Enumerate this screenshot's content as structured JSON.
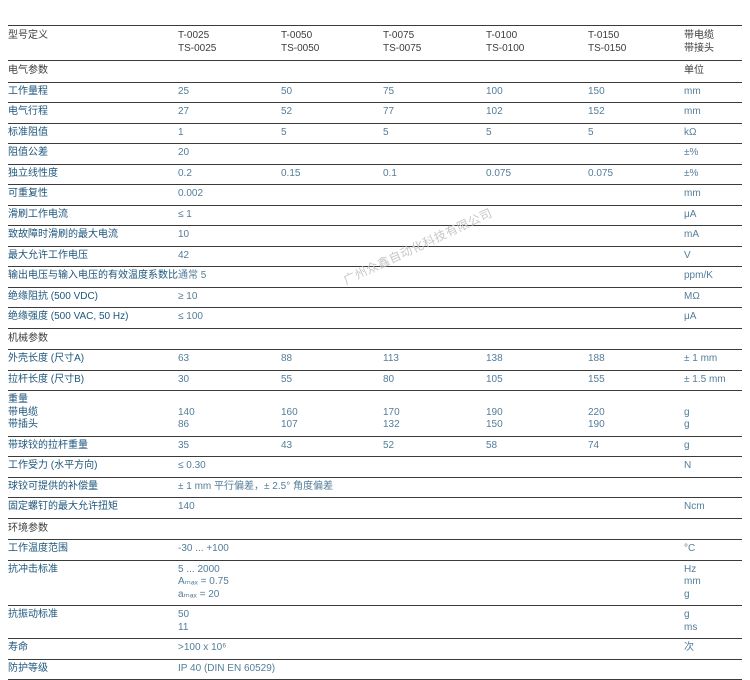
{
  "watermark": {
    "text": "广州众鑫自动化科技有限公司",
    "color": "#c7c7c7"
  },
  "colors": {
    "row_label": "#1d567c",
    "value_text": "#537d99",
    "dark_text": "#3c3c3c",
    "grid_line": "#3b3b3b"
  },
  "table": {
    "rows": [
      {
        "type": "header",
        "label": "型号定义",
        "values": [
          [
            "T-0025",
            "TS-0025"
          ],
          [
            "T-0050",
            "TS-0050"
          ],
          [
            "T-0075",
            "TS-0075"
          ],
          [
            "T-0100",
            "TS-0100"
          ],
          [
            "T-0150",
            "TS-0150"
          ]
        ],
        "unit": [
          "带电缆",
          "带接头"
        ]
      },
      {
        "type": "section",
        "label": "电气参数",
        "unit": "单位"
      },
      {
        "type": "data",
        "label": "工作量程",
        "values": [
          "25",
          "50",
          "75",
          "100",
          "150"
        ],
        "unit": "mm"
      },
      {
        "type": "data",
        "label": "电气行程",
        "values": [
          "27",
          "52",
          "77",
          "102",
          "152"
        ],
        "unit": "mm"
      },
      {
        "type": "data",
        "label": "标准阻值",
        "values": [
          "1",
          "5",
          "5",
          "5",
          "5"
        ],
        "unit": "kΩ"
      },
      {
        "type": "data",
        "label": "阻值公差",
        "values": [
          "20",
          "",
          "",
          "",
          ""
        ],
        "unit": "±%"
      },
      {
        "type": "data",
        "label": "独立线性度",
        "values": [
          "0.2",
          "0.15",
          "0.1",
          "0.075",
          "0.075"
        ],
        "unit": "±%"
      },
      {
        "type": "data",
        "label": "可重复性",
        "values": [
          "0.002",
          "",
          "",
          "",
          ""
        ],
        "unit": "mm"
      },
      {
        "type": "data",
        "label": "滑刷工作电流",
        "values": [
          "≤ 1",
          "",
          "",
          "",
          ""
        ],
        "unit": "μA"
      },
      {
        "type": "data",
        "label": "致故障时滑刷的最大电流",
        "values": [
          "10",
          "",
          "",
          "",
          ""
        ],
        "unit": "mA"
      },
      {
        "type": "data",
        "label": "最大允许工作电压",
        "values": [
          "42",
          "",
          "",
          "",
          ""
        ],
        "unit": "V"
      },
      {
        "type": "data",
        "label": "输出电压与输入电压的有效温度系数比",
        "values": [
          "通常 5",
          "",
          "",
          "",
          ""
        ],
        "unit": "ppm/K"
      },
      {
        "type": "data",
        "label": "绝缘阻抗 (500 VDC)",
        "values": [
          "≥ 10",
          "",
          "",
          "",
          ""
        ],
        "unit": "MΩ"
      },
      {
        "type": "data",
        "label": "绝缘强度 (500 VAC, 50 Hz)",
        "values": [
          "≤ 100",
          "",
          "",
          "",
          ""
        ],
        "unit": "μA"
      },
      {
        "type": "section",
        "label": "机械参数",
        "unit": ""
      },
      {
        "type": "data",
        "label": "外壳长度 (尺寸A)",
        "values": [
          "63",
          "88",
          "113",
          "138",
          "188"
        ],
        "unit": "± 1 mm"
      },
      {
        "type": "data",
        "label": "拉杆长度 (尺寸B)",
        "values": [
          "30",
          "55",
          "80",
          "105",
          "155"
        ],
        "unit": "± 1.5 mm"
      },
      {
        "type": "data",
        "label": [
          "重量",
          "带电缆",
          "带插头"
        ],
        "values": [
          [
            "",
            "140",
            "86"
          ],
          [
            "",
            "160",
            "107"
          ],
          [
            "",
            "170",
            "132"
          ],
          [
            "",
            "190",
            "150"
          ],
          [
            "",
            "220",
            "190"
          ]
        ],
        "unit": [
          "",
          "g",
          "g"
        ]
      },
      {
        "type": "data",
        "label": "带球铰的拉杆重量",
        "values": [
          "35",
          "43",
          "52",
          "58",
          "74"
        ],
        "unit": "g"
      },
      {
        "type": "data",
        "label": "工作受力 (水平方向)",
        "values": [
          "≤ 0.30",
          "",
          "",
          "",
          ""
        ],
        "unit": "N"
      },
      {
        "type": "data",
        "label": "球铰可提供的补偿量",
        "span_value": "± 1 mm 平行偏差，± 2.5° 角度偏差",
        "unit": ""
      },
      {
        "type": "data",
        "label": "固定螺钉的最大允许扭矩",
        "values": [
          "140",
          "",
          "",
          "",
          ""
        ],
        "unit": "Ncm"
      },
      {
        "type": "section",
        "label": "环境参数",
        "unit": ""
      },
      {
        "type": "data",
        "label": "工作温度范围",
        "values": [
          "-30 ... +100",
          "",
          "",
          "",
          ""
        ],
        "unit": "°C"
      },
      {
        "type": "data",
        "label": "抗冲击标准",
        "values": [
          [
            "5 ... 2000",
            "Aₘₐₓ = 0.75",
            "aₘₐₓ = 20"
          ],
          "",
          "",
          "",
          ""
        ],
        "unit": [
          "Hz",
          "mm",
          "g"
        ]
      },
      {
        "type": "data",
        "label": "抗振动标准",
        "values": [
          [
            "50",
            "11"
          ],
          "",
          "",
          "",
          ""
        ],
        "unit": [
          "g",
          "ms"
        ]
      },
      {
        "type": "data",
        "label": "寿命",
        "values": [
          ">100 x 10⁶",
          "",
          "",
          "",
          ""
        ],
        "unit": "次"
      },
      {
        "type": "data",
        "label": "防护等级",
        "values": [
          "IP 40 (DIN EN 60529)",
          "",
          "",
          "",
          ""
        ],
        "unit": ""
      }
    ]
  }
}
